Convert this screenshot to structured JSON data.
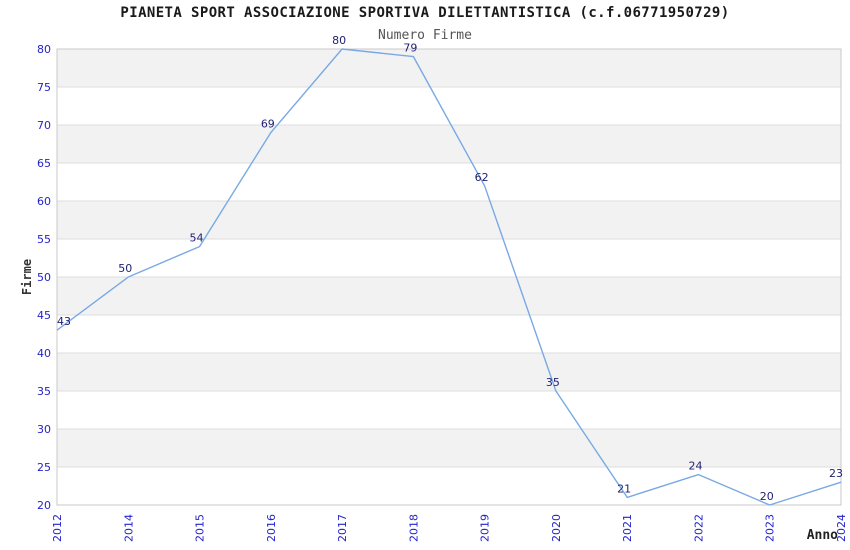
{
  "page": {
    "background": "#ffffff"
  },
  "chart_data": {
    "type": "line",
    "title": "PIANETA SPORT ASSOCIAZIONE SPORTIVA DILETTANTISTICA (c.f.06771950729)",
    "subtitle": "Numero Firme",
    "xlabel": "Anno",
    "ylabel": "Firme",
    "categories": [
      "2012",
      "2014",
      "2015",
      "2016",
      "2017",
      "2018",
      "2019",
      "2020",
      "2021",
      "2022",
      "2023",
      "2024"
    ],
    "values": [
      43,
      50,
      54,
      69,
      80,
      79,
      62,
      35,
      21,
      24,
      20,
      23
    ],
    "ylim": [
      20,
      80
    ],
    "ytick_step": 5,
    "grid": "horizontal",
    "background_bands": "alternating gray/white every 5 units",
    "legend_position": "none",
    "point_labels_visible": true,
    "x_tick_rotation": -90,
    "colors": {
      "line": "#79a9e4",
      "tick_label": "#2323cd",
      "data_label": "#1f1f70",
      "band": "#f2f2f2",
      "grid_line": "#dedede",
      "border": "#c9c9c9",
      "title": "#1a1a1a",
      "subtitle": "#555555",
      "axis_title": "#333333",
      "background": "#ffffff"
    }
  }
}
